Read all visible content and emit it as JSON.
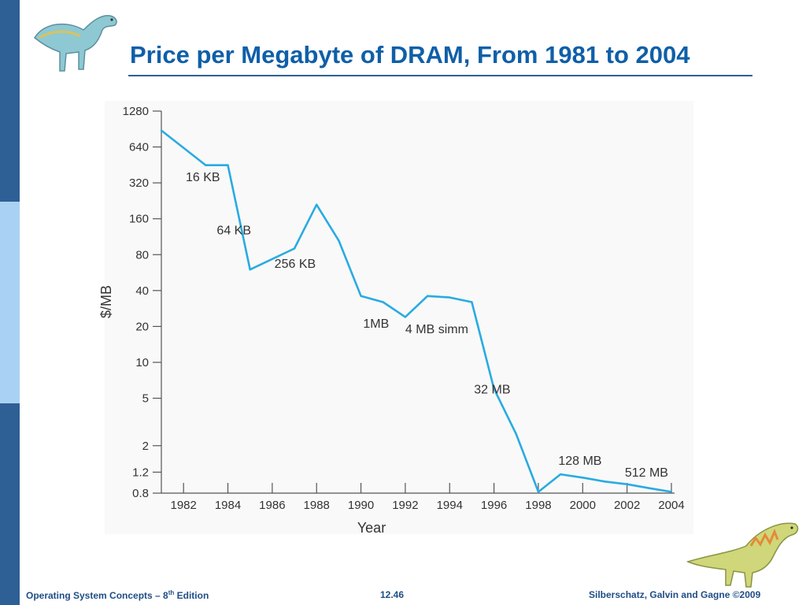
{
  "slide": {
    "title": "Price per Megabyte of DRAM, From 1981 to 2004",
    "footer_left_pre": "Operating System Concepts – 8",
    "footer_left_sup": "th",
    "footer_left_post": " Edition",
    "footer_center": "12.46",
    "footer_right": "Silberschatz, Galvin and Gagne ©2009"
  },
  "colors": {
    "line": "#29abe2",
    "title": "#0f5fa8",
    "sidebar_dark": "#2e5f95",
    "sidebar_light": "#a9d1f3"
  },
  "icons": {
    "top_left": "dinosaur-icon",
    "bottom_right": "dinosaur-icon"
  },
  "chart_data": {
    "type": "line",
    "title": "",
    "xlabel": "Year",
    "ylabel": "$/MB",
    "y_scale": "log",
    "xlim": [
      1981,
      2004
    ],
    "ylim": [
      0.8,
      1280
    ],
    "x_ticks": [
      1982,
      1984,
      1986,
      1988,
      1990,
      1992,
      1994,
      1996,
      1998,
      2000,
      2002,
      2004
    ],
    "y_ticks": [
      {
        "value": 1280,
        "label": "1280"
      },
      {
        "value": 640,
        "label": "640"
      },
      {
        "value": 320,
        "label": "320"
      },
      {
        "value": 160,
        "label": "160"
      },
      {
        "value": 80,
        "label": "80"
      },
      {
        "value": 40,
        "label": "40"
      },
      {
        "value": 20,
        "label": "20"
      },
      {
        "value": 10,
        "label": "10"
      },
      {
        "value": 5,
        "label": "5"
      },
      {
        "value": 2,
        "label": "2"
      },
      {
        "value": 1.2,
        "label": "1.2"
      },
      {
        "value": 0.8,
        "label": "0.8"
      }
    ],
    "grid": false,
    "series": [
      {
        "x": [
          1981,
          1983,
          1984,
          1985,
          1987,
          1988,
          1989,
          1990,
          1991,
          1992,
          1993,
          1994,
          1995,
          1996,
          1997,
          1998,
          1999,
          2000,
          2001,
          2002,
          2003,
          2004
        ],
        "values": [
          880,
          450,
          450,
          60,
          90,
          210,
          105,
          36,
          32,
          24,
          36,
          35,
          32,
          6,
          2.5,
          0.82,
          1.15,
          1.08,
          1.0,
          0.95,
          0.88,
          0.82
        ]
      }
    ],
    "annotations": [
      {
        "text": "16 KB",
        "x": 1982.1,
        "y": 330
      },
      {
        "text": "64 KB",
        "x": 1983.5,
        "y": 118
      },
      {
        "text": "256 KB",
        "x": 1986.1,
        "y": 62
      },
      {
        "text": "1MB",
        "x": 1990.1,
        "y": 19.5
      },
      {
        "text": "4 MB simm",
        "x": 1992.0,
        "y": 17.5
      },
      {
        "text": "32 MB",
        "x": 1995.1,
        "y": 5.5
      },
      {
        "text": "128 MB",
        "x": 1998.9,
        "y": 1.38
      },
      {
        "text": "512 MB",
        "x": 2001.9,
        "y": 1.1
      }
    ]
  }
}
